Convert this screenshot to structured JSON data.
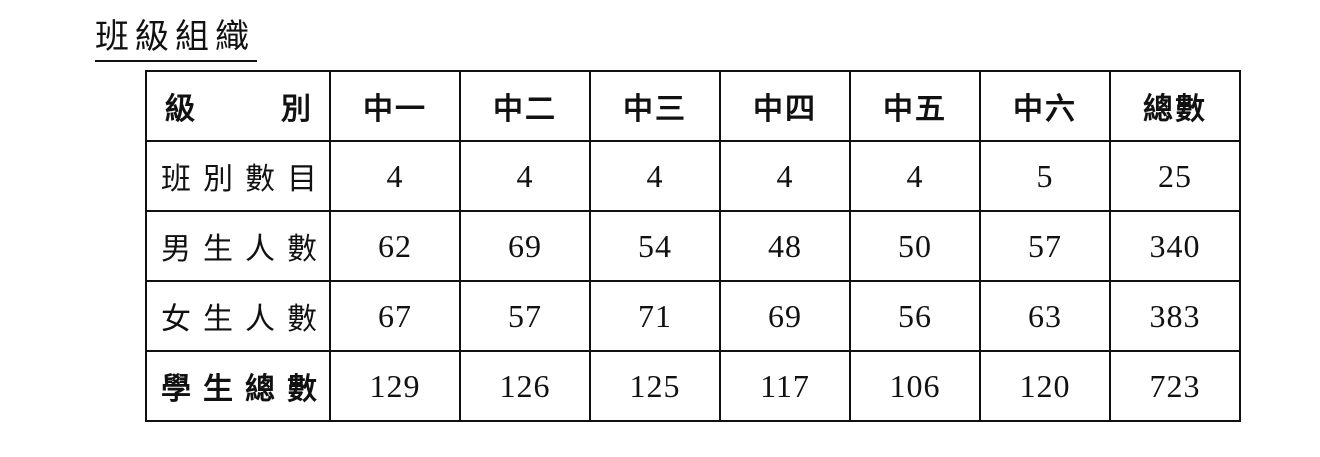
{
  "title": "班級組織",
  "table": {
    "header": {
      "row_label_left": "級",
      "row_label_right": "別",
      "grades": [
        "中一",
        "中二",
        "中三",
        "中四",
        "中五",
        "中六",
        "總數"
      ]
    },
    "rows": [
      {
        "label": "班別數目",
        "values": [
          4,
          4,
          4,
          4,
          4,
          5,
          25
        ]
      },
      {
        "label": "男生人數",
        "values": [
          62,
          69,
          54,
          48,
          50,
          57,
          340
        ]
      },
      {
        "label": "女生人數",
        "values": [
          67,
          57,
          71,
          69,
          56,
          63,
          383
        ]
      },
      {
        "label": "學生總數",
        "values": [
          129,
          126,
          125,
          117,
          106,
          120,
          723
        ]
      }
    ]
  }
}
